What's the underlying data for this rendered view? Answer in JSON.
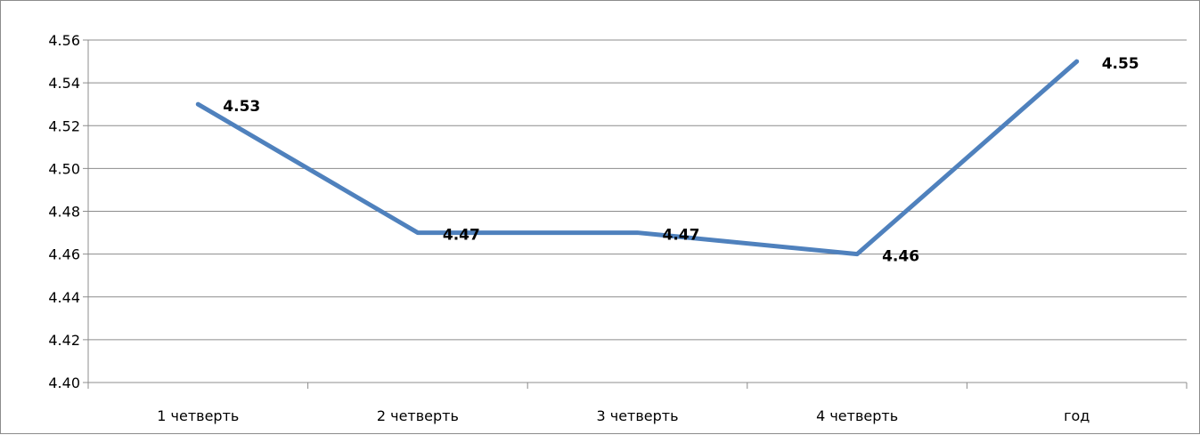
{
  "chart_data": {
    "type": "line",
    "categories": [
      "1 четверть",
      "2 четверть",
      "3 четверть",
      "4 четверть",
      "год"
    ],
    "series": [
      {
        "values": [
          4.53,
          4.47,
          4.47,
          4.46,
          4.55
        ],
        "color": "#4f81bd"
      }
    ],
    "data_labels": [
      "4.53",
      "4.47",
      "4.47",
      "4.46",
      "4.55"
    ],
    "y_ticks": [
      "4.40",
      "4.42",
      "4.44",
      "4.46",
      "4.48",
      "4.50",
      "4.52",
      "4.54",
      "4.56"
    ],
    "ylim": [
      4.4,
      4.56
    ],
    "grid": true,
    "legend": "none",
    "title": "",
    "xlabel": "",
    "ylabel": ""
  }
}
